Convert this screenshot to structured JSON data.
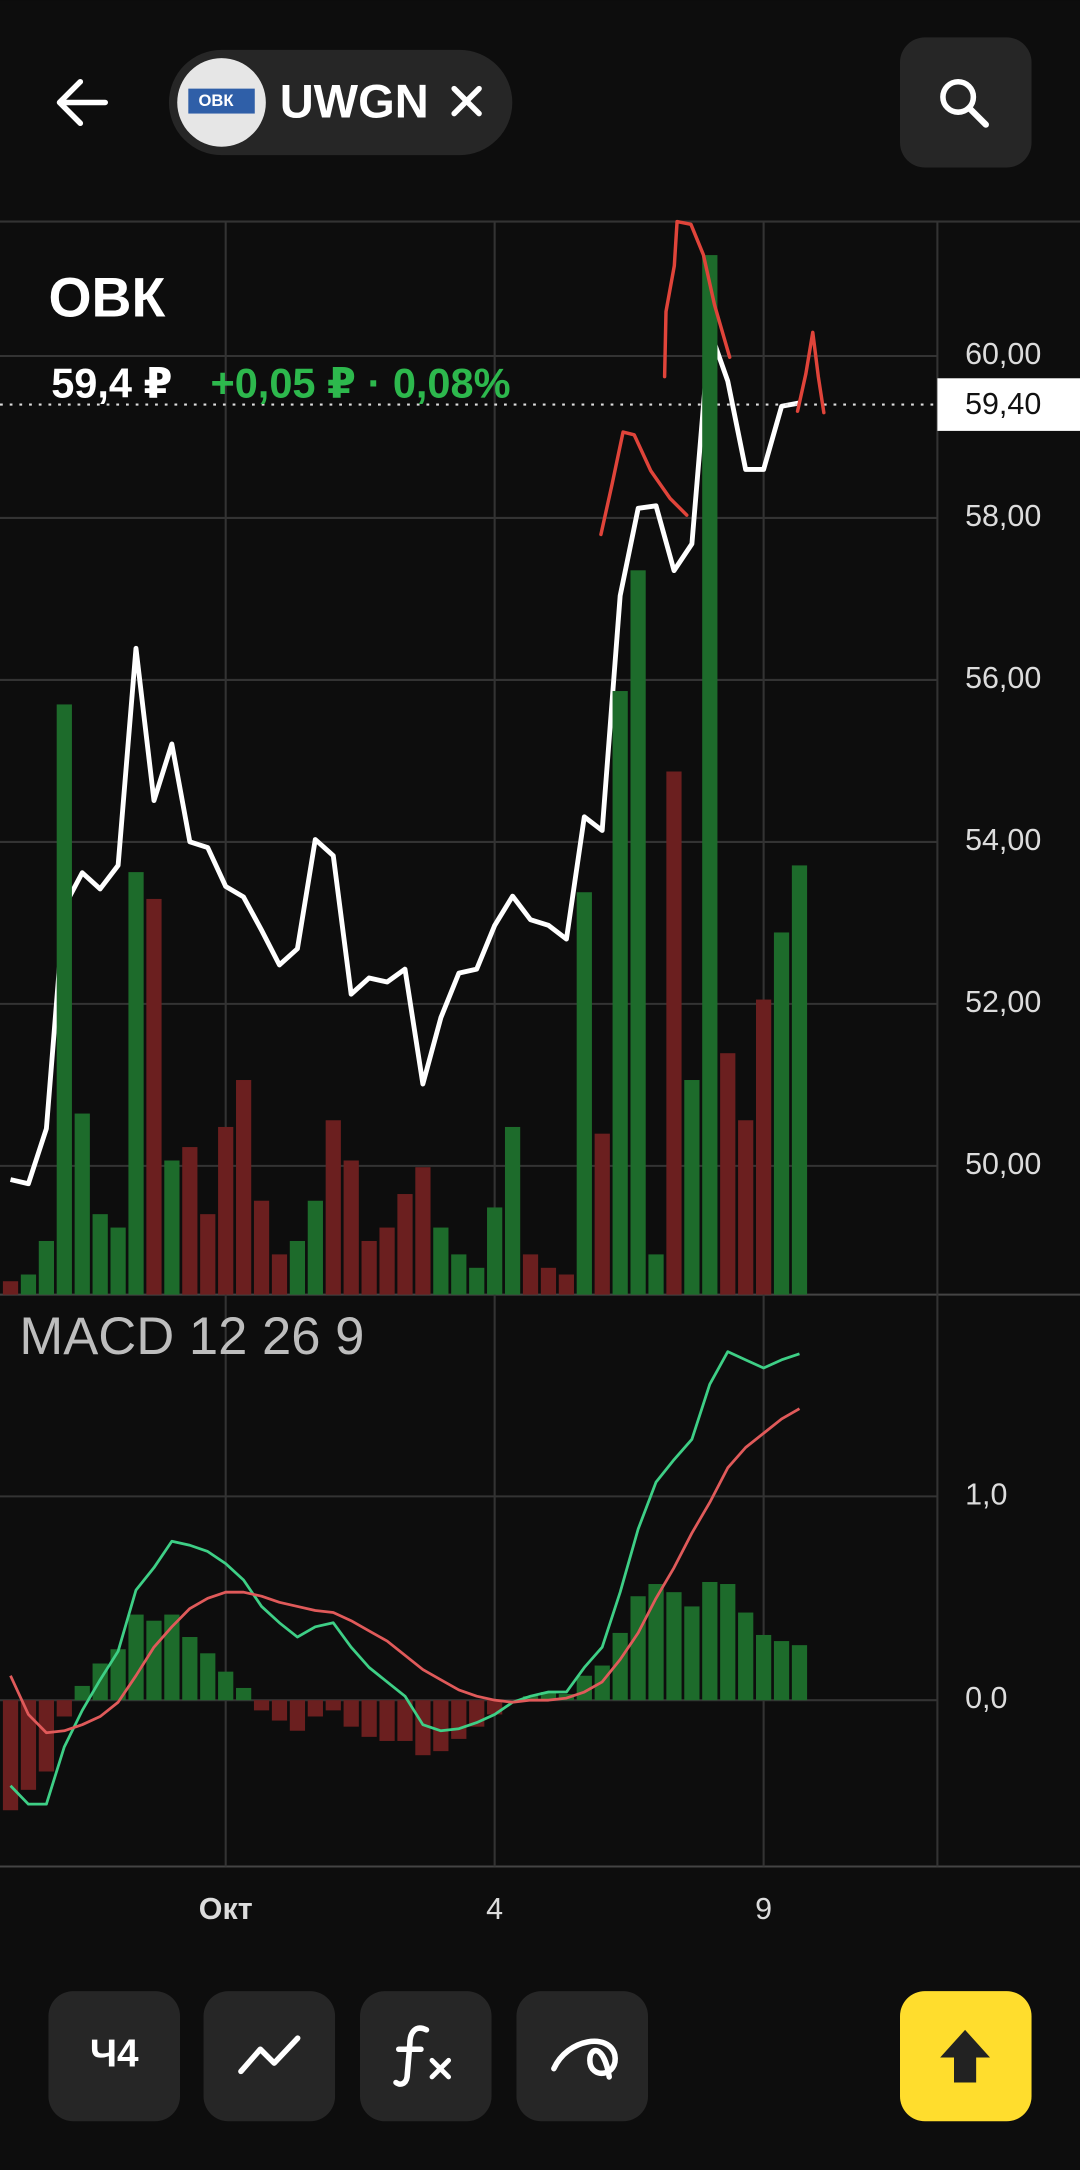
{
  "header": {
    "logo_text": "ОВК",
    "ticker": "UWGN"
  },
  "quote": {
    "name": "ОВК",
    "price": "59,4 ₽",
    "change": "+0,05 ₽ · 0,08%"
  },
  "chart_data": [
    {
      "type": "line",
      "color": "#ffffff",
      "categories": [
        null,
        null,
        null,
        null,
        null,
        null,
        null,
        null,
        null,
        null,
        null,
        null,
        "Окт",
        null,
        null,
        null,
        null,
        null,
        null,
        null,
        null,
        null,
        null,
        null,
        null,
        null,
        null,
        "4",
        null,
        null,
        null,
        null,
        null,
        null,
        null,
        null,
        null,
        null,
        null,
        null,
        null,
        null,
        "9",
        null,
        null
      ],
      "values": [
        49.83,
        49.78,
        50.46,
        53.2,
        53.62,
        53.42,
        53.71,
        56.39,
        54.51,
        55.21,
        54.0,
        53.93,
        53.45,
        53.32,
        52.91,
        52.48,
        52.68,
        54.03,
        53.83,
        52.12,
        52.32,
        52.27,
        52.43,
        51.01,
        51.83,
        52.38,
        52.43,
        52.97,
        53.33,
        53.04,
        52.97,
        52.8,
        54.31,
        54.14,
        57.04,
        58.12,
        58.15,
        57.35,
        57.68,
        60.32,
        59.69,
        58.6,
        58.6,
        59.38,
        59.42
      ],
      "ylim": [
        48.41,
        61.66
      ],
      "yticks": [
        {
          "value": 50,
          "label": "50,00"
        },
        {
          "value": 52,
          "label": "52,00"
        },
        {
          "value": 54,
          "label": "54,00"
        },
        {
          "value": 56,
          "label": "56,00"
        },
        {
          "value": 58,
          "label": "58,00"
        },
        {
          "value": 60,
          "label": "60,00"
        }
      ],
      "current_price": {
        "value": 59.4,
        "label": "59,40"
      },
      "grid": true
    },
    {
      "type": "bar",
      "values": [
        2,
        3,
        8,
        88,
        27,
        12,
        10,
        63,
        59,
        20,
        22,
        12,
        25,
        32,
        14,
        6,
        8,
        14,
        26,
        20,
        8,
        10,
        15,
        19,
        10,
        6,
        4,
        13,
        25,
        6,
        4,
        3,
        60,
        24,
        90,
        108,
        6,
        78,
        32,
        155,
        36,
        26,
        44,
        54,
        64
      ],
      "colors": [
        "#6b1f1f",
        "#1d6b2b",
        "#1d6b2b",
        "#1d6b2b",
        "#1d6b2b",
        "#1d6b2b",
        "#1d6b2b",
        "#1d6b2b",
        "#6b1f1f",
        "#1d6b2b",
        "#6b1f1f",
        "#6b1f1f",
        "#6b1f1f",
        "#6b1f1f",
        "#6b1f1f",
        "#6b1f1f",
        "#1d6b2b",
        "#1d6b2b",
        "#6b1f1f",
        "#6b1f1f",
        "#6b1f1f",
        "#6b1f1f",
        "#6b1f1f",
        "#6b1f1f",
        "#1d6b2b",
        "#1d6b2b",
        "#1d6b2b",
        "#1d6b2b",
        "#1d6b2b",
        "#6b1f1f",
        "#6b1f1f",
        "#6b1f1f",
        "#1d6b2b",
        "#6b1f1f",
        "#1d6b2b",
        "#1d6b2b",
        "#1d6b2b",
        "#6b1f1f",
        "#1d6b2b",
        "#1d6b2b",
        "#6b1f1f",
        "#6b1f1f",
        "#6b1f1f",
        "#1d6b2b",
        "#1d6b2b"
      ],
      "ylim": [
        0,
        160
      ]
    },
    {
      "type": "macd",
      "title": "MACD 12 26 9",
      "series": [
        {
          "color": "#3ecf86",
          "values": [
            -0.42,
            -0.51,
            -0.51,
            -0.23,
            -0.05,
            0.1,
            0.24,
            0.54,
            0.65,
            0.78,
            0.76,
            0.73,
            0.67,
            0.59,
            0.46,
            0.38,
            0.31,
            0.36,
            0.38,
            0.26,
            0.16,
            0.09,
            0.02,
            -0.12,
            -0.15,
            -0.14,
            -0.11,
            -0.07,
            -0.01,
            0.02,
            0.04,
            0.04,
            0.16,
            0.26,
            0.53,
            0.84,
            1.07,
            1.18,
            1.28,
            1.55,
            1.71,
            1.67,
            1.63,
            1.67,
            1.7
          ]
        },
        {
          "color": "#e05a5a",
          "values": [
            0.12,
            -0.07,
            -0.16,
            -0.15,
            -0.12,
            -0.08,
            -0.01,
            0.12,
            0.26,
            0.36,
            0.45,
            0.5,
            0.53,
            0.53,
            0.51,
            0.48,
            0.46,
            0.44,
            0.43,
            0.39,
            0.34,
            0.29,
            0.22,
            0.15,
            0.1,
            0.05,
            0.02,
            0.0,
            -0.01,
            0.0,
            0.0,
            0.01,
            0.04,
            0.09,
            0.2,
            0.33,
            0.5,
            0.65,
            0.82,
            0.97,
            1.14,
            1.24,
            1.31,
            1.38,
            1.43
          ]
        }
      ],
      "histogram": {
        "pos_color": "#1d6b2b",
        "neg_color": "#6b1f1f",
        "values": [
          -0.54,
          -0.44,
          -0.35,
          -0.08,
          0.07,
          0.18,
          0.25,
          0.42,
          0.39,
          0.42,
          0.31,
          0.23,
          0.14,
          0.06,
          -0.05,
          -0.1,
          -0.15,
          -0.08,
          -0.05,
          -0.13,
          -0.18,
          -0.2,
          -0.2,
          -0.27,
          -0.25,
          -0.19,
          -0.13,
          -0.07,
          0.0,
          0.02,
          0.04,
          0.03,
          0.12,
          0.17,
          0.33,
          0.51,
          0.57,
          0.53,
          0.46,
          0.58,
          0.57,
          0.43,
          0.32,
          0.29,
          0.27
        ]
      },
      "ylim": [
        -0.816,
        1.99
      ],
      "yticks": [
        {
          "value": 0,
          "label": "0,0"
        },
        {
          "value": 1,
          "label": "1,0"
        }
      ],
      "grid": true
    }
  ],
  "toolbar": {
    "interval": "Ч4"
  }
}
